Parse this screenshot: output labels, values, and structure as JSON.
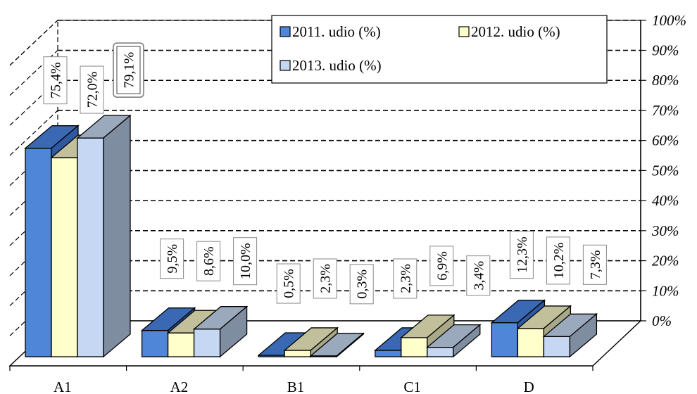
{
  "chart_data": {
    "type": "bar",
    "categories": [
      "A1",
      "A2",
      "B1",
      "C1",
      "D"
    ],
    "series": [
      {
        "name": "2011. udio (%)",
        "values": [
          75.4,
          9.5,
          0.5,
          2.3,
          12.3
        ],
        "labels": [
          "75,4%",
          "9,5%",
          "0,5%",
          "2,3%",
          "12,3%"
        ]
      },
      {
        "name": "2012. udio (%)",
        "values": [
          72.0,
          8.6,
          2.3,
          6.9,
          10.2
        ],
        "labels": [
          "72,0%",
          "8,6%",
          "2,3%",
          "6,9%",
          "10,2%"
        ]
      },
      {
        "name": "2013. udio (%)",
        "values": [
          79.1,
          10.0,
          0.3,
          3.4,
          7.3
        ],
        "labels": [
          "79,1%",
          "10,0%",
          "0,3%",
          "3,4%",
          "7,3%"
        ]
      }
    ],
    "y_ticks": [
      "0%",
      "10%",
      "20%",
      "30%",
      "40%",
      "50%",
      "60%",
      "70%",
      "80%",
      "90%",
      "100%"
    ],
    "ylim": [
      0,
      100
    ],
    "grid": true,
    "legend_position": "top-right",
    "colors": {
      "series_front": [
        "#4f86d8",
        "#ffffcc",
        "#c5d7f2"
      ],
      "series_top": [
        "#3a68b2",
        "#c2c09b",
        "#9ba9bd"
      ],
      "series_side": [
        "#2e58a0",
        "#a9a888",
        "#7f8da1"
      ]
    }
  }
}
